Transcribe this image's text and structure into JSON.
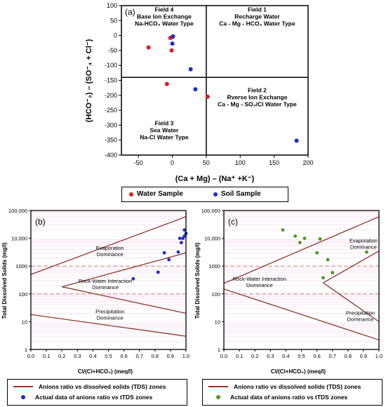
{
  "colors": {
    "water": "#e31a1c",
    "soil": "#1f2bd1",
    "zone_line": "#8b3a2a",
    "threshold": "#d88a8a",
    "grid_pink": "#f7d0ea",
    "green": "#4a9a1e"
  },
  "chart_data": [
    {
      "type": "scatter",
      "panel": "(a)",
      "xlabel": "(Ca + Mg) – (Na⁺ +K⁻)",
      "ylabel": "(HCO⁻₃) – (SO⁻₄ + Cl⁻)",
      "xlim": [
        -75,
        200
      ],
      "ylim": [
        -400,
        100
      ],
      "xticks": [
        "-50",
        "0",
        "50",
        "100",
        "150",
        "200"
      ],
      "yticks": [
        "100",
        "50",
        "0",
        "-50",
        "-100",
        "-150",
        "-200",
        "-250",
        "-300",
        "-350",
        "-400"
      ],
      "fields": [
        {
          "id": "f4",
          "lines": [
            "Field 4",
            "Base Ion Exchange",
            "Na-HCO₃ Water Type"
          ]
        },
        {
          "id": "f1",
          "lines": [
            "Field 1",
            "Recharge Water",
            "Ca - Mg - HCO₃ Water Type"
          ]
        },
        {
          "id": "f2",
          "lines": [
            "Field 2",
            "Rverse Ion Exchange",
            "Ca - Mg - SO₄/Cl Water Type"
          ]
        },
        {
          "id": "f3",
          "lines": [
            "Field 3",
            "Sea Water",
            "Na-Cl Water Type"
          ]
        }
      ],
      "series": [
        {
          "name": "Water Sample",
          "points": [
            [
              -35,
              -40
            ],
            [
              -3,
              -8
            ],
            [
              0,
              -5
            ],
            [
              -1,
              -50
            ],
            [
              -8,
              -162
            ],
            [
              52,
              -205
            ]
          ]
        },
        {
          "name": "Soil Sample",
          "points": [
            [
              1,
              -3
            ],
            [
              0,
              -27
            ],
            [
              27,
              -113
            ],
            [
              34,
              -180
            ],
            [
              183,
              -352
            ]
          ]
        }
      ],
      "legend": [
        "Water Sample",
        "Soil Sample"
      ]
    },
    {
      "type": "scatter",
      "panel": "(b)",
      "xlabel": "Cl/(Cl+HCO₃) (meq/l)",
      "ylabel": "Total Dissolved Solids (mg/l)",
      "xlim": [
        0,
        1
      ],
      "ylim": [
        1,
        100000
      ],
      "yscale": "log",
      "xticks": [
        "0.0",
        "0.1",
        "0.2",
        "0.3",
        "0.4",
        "0.5",
        "0.6",
        "0.7",
        "0.8",
        "0.9",
        "1.0"
      ],
      "yticks": [
        "100,000",
        "10,000",
        "1000",
        "100",
        "10",
        "1"
      ],
      "zones": [
        "Evaporation Dominance",
        "Rock-Water Interaction Dominance",
        "Precipitation Dominance"
      ],
      "series": [
        {
          "points": [
            [
              0.66,
              350
            ],
            [
              0.82,
              600
            ],
            [
              0.86,
              3000
            ],
            [
              0.89,
              1700
            ],
            [
              0.95,
              3200
            ],
            [
              0.96,
              10000
            ],
            [
              0.97,
              7000
            ],
            [
              0.98,
              10000
            ],
            [
              0.99,
              20000
            ],
            [
              0.99,
              12000
            ],
            [
              1.0,
              15000
            ]
          ]
        }
      ],
      "legend": [
        "Anions ratio vs dissolved solids (TDS) zones",
        "Actual data of anions ratio vs tTDS zones"
      ]
    },
    {
      "type": "scatter",
      "panel": "(c)",
      "xlabel": "Cl/(Cl+HCO₃) (meq/l)",
      "ylabel": "Total Dissolved Solids (mg/l)",
      "xlim": [
        0,
        1
      ],
      "ylim": [
        1,
        100000
      ],
      "yscale": "log",
      "xticks": [
        "0.0",
        "0.1",
        "0.2",
        "0.3",
        "0.4",
        "0.5",
        "0.6",
        "0.7",
        "0.8",
        "0.9",
        "1.0"
      ],
      "yticks": [
        "100,000",
        "10,000",
        "1000",
        "100",
        "10",
        "1"
      ],
      "zones": [
        "Evaporation Dominance",
        "Rock-Water Interaction Dominance",
        "Precipitation Dominance"
      ],
      "series": [
        {
          "points": [
            [
              0.38,
              20000
            ],
            [
              0.46,
              12000
            ],
            [
              0.49,
              7000
            ],
            [
              0.52,
              10000
            ],
            [
              0.6,
              3000
            ],
            [
              0.62,
              9500
            ],
            [
              0.64,
              380
            ],
            [
              0.67,
              1700
            ],
            [
              0.7,
              580
            ],
            [
              0.92,
              3200
            ]
          ]
        }
      ],
      "legend": [
        "Anions ratio vs dissolved solids (TDS) zones",
        "Actual data of anions ratio vs tTDS zones"
      ]
    }
  ]
}
